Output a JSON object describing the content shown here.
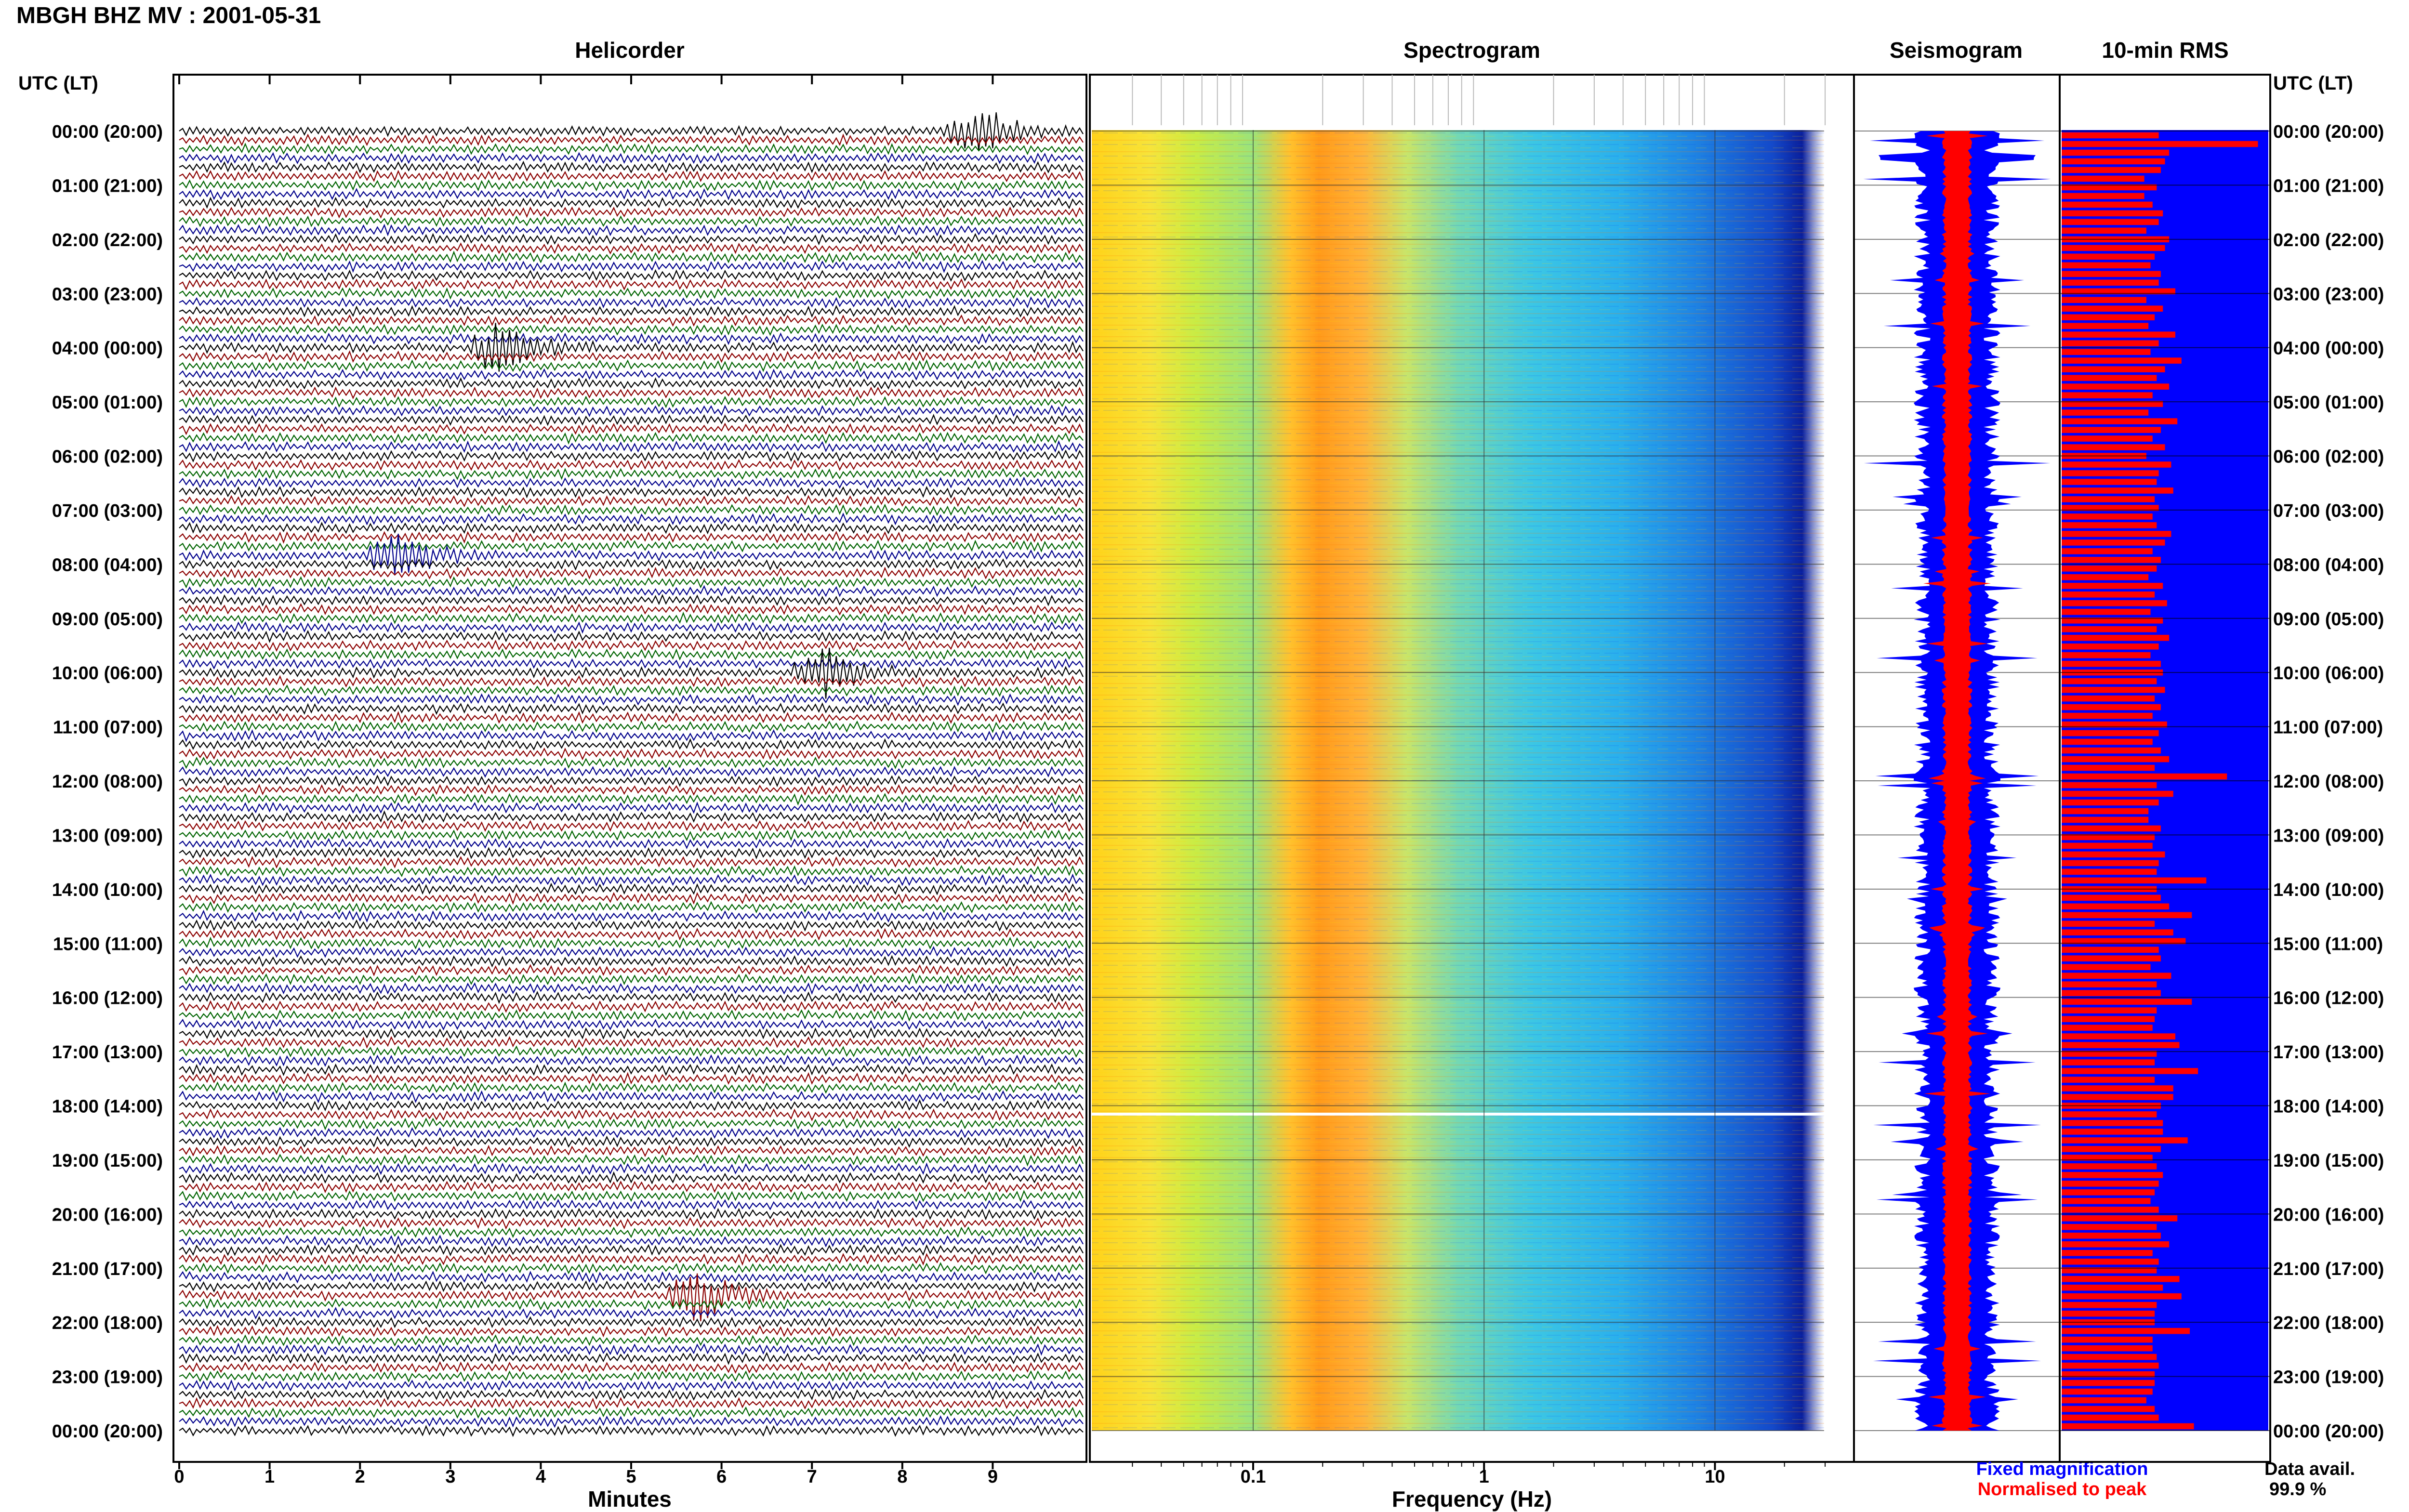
{
  "header": {
    "title": "MBGH BHZ MV : 2001-05-31"
  },
  "panels": {
    "helicorder_title": "Helicorder",
    "spectrogram_title": "Spectrogram",
    "seismogram_title": "Seismogram",
    "rms_title": "10-min RMS"
  },
  "axes": {
    "left_time_header": "UTC (LT)",
    "right_time_header": "UTC (LT)",
    "hours": [
      "00:00 (20:00)",
      "01:00 (21:00)",
      "02:00 (22:00)",
      "03:00 (23:00)",
      "04:00 (00:00)",
      "05:00 (01:00)",
      "06:00 (02:00)",
      "07:00 (03:00)",
      "08:00 (04:00)",
      "09:00 (05:00)",
      "10:00 (06:00)",
      "11:00 (07:00)",
      "12:00 (08:00)",
      "13:00 (09:00)",
      "14:00 (10:00)",
      "15:00 (11:00)",
      "16:00 (12:00)",
      "17:00 (13:00)",
      "18:00 (14:00)",
      "19:00 (15:00)",
      "20:00 (16:00)",
      "21:00 (17:00)",
      "22:00 (18:00)",
      "23:00 (19:00)",
      "00:00 (20:00)"
    ],
    "minutes_ticks": [
      "0",
      "1",
      "2",
      "3",
      "4",
      "5",
      "6",
      "7",
      "8",
      "9"
    ],
    "minutes_label": "Minutes",
    "freq_ticks": [
      "0.1",
      "1",
      "10"
    ],
    "freq_label": "Frequency (Hz)"
  },
  "legend": {
    "fixed": "Fixed magnification",
    "normalised": "Normalised to peak",
    "fixed_color": "#0000ff",
    "normalised_color": "#ff0000"
  },
  "availability": {
    "label": "Data avail.",
    "value": "99.9 %"
  },
  "colors": {
    "trace_cycle": [
      "#000000",
      "#8b0000",
      "#006400",
      "#00008b"
    ],
    "rms_fill": "#0000ff",
    "rms_bar": "#ff0000",
    "seismogram_envelope": "#0000ff",
    "seismogram_core": "#ff0000"
  },
  "chart_data": {
    "type": "heatmap",
    "time_range_utc": [
      "00:00",
      "24:00"
    ],
    "helicorder_minutes_range": [
      0,
      10
    ],
    "rows_per_hour": 6,
    "frequency_range_hz": [
      0.02,
      40
    ],
    "frequency_scale": "log",
    "grid": true,
    "notable_events_helicorder": [
      {
        "time_utc": "00:00",
        "minute": 8.7
      },
      {
        "time_utc": "04:00",
        "minute": 3.4
      },
      {
        "time_utc": "07:50",
        "minute": 2.3
      },
      {
        "time_utc": "10:00",
        "minute": 7.0
      },
      {
        "time_utc": "21:30",
        "minute": 5.6
      }
    ],
    "rms_relative": [
      0.47,
      0.95,
      0.52,
      0.5,
      0.48,
      0.4,
      0.46,
      0.4,
      0.44,
      0.49,
      0.47,
      0.41,
      0.52,
      0.5,
      0.45,
      0.43,
      0.48,
      0.47,
      0.55,
      0.41,
      0.49,
      0.45,
      0.42,
      0.55,
      0.47,
      0.43,
      0.58,
      0.5,
      0.46,
      0.52,
      0.44,
      0.49,
      0.42,
      0.56,
      0.48,
      0.44,
      0.5,
      0.41,
      0.53,
      0.47,
      0.46,
      0.54,
      0.45,
      0.47,
      0.44,
      0.46,
      0.53,
      0.5,
      0.44,
      0.48,
      0.46,
      0.42,
      0.49,
      0.45,
      0.51,
      0.43,
      0.49,
      0.46,
      0.52,
      0.47,
      0.43,
      0.48,
      0.49,
      0.46,
      0.5,
      0.45,
      0.48,
      0.44,
      0.51,
      0.47,
      0.44,
      0.48,
      0.52,
      0.45,
      0.8,
      0.46,
      0.54,
      0.47,
      0.42,
      0.42,
      0.48,
      0.45,
      0.44,
      0.5,
      0.47,
      0.46,
      0.7,
      0.46,
      0.48,
      0.52,
      0.63,
      0.45,
      0.54,
      0.6,
      0.47,
      0.48,
      0.43,
      0.53,
      0.46,
      0.48,
      0.63,
      0.46,
      0.45,
      0.44,
      0.55,
      0.57,
      0.46,
      0.45,
      0.66,
      0.45,
      0.54,
      0.54,
      0.48,
      0.46,
      0.49,
      0.49,
      0.61,
      0.48,
      0.44,
      0.46,
      0.49,
      0.47,
      0.45,
      0.43,
      0.47,
      0.56,
      0.46,
      0.48,
      0.52,
      0.44,
      0.47,
      0.46,
      0.57,
      0.49,
      0.58,
      0.46,
      0.45,
      0.45,
      0.62,
      0.44,
      0.44,
      0.46,
      0.47,
      0.45,
      0.45,
      0.44,
      0.41,
      0.45,
      0.47,
      0.64
    ]
  }
}
